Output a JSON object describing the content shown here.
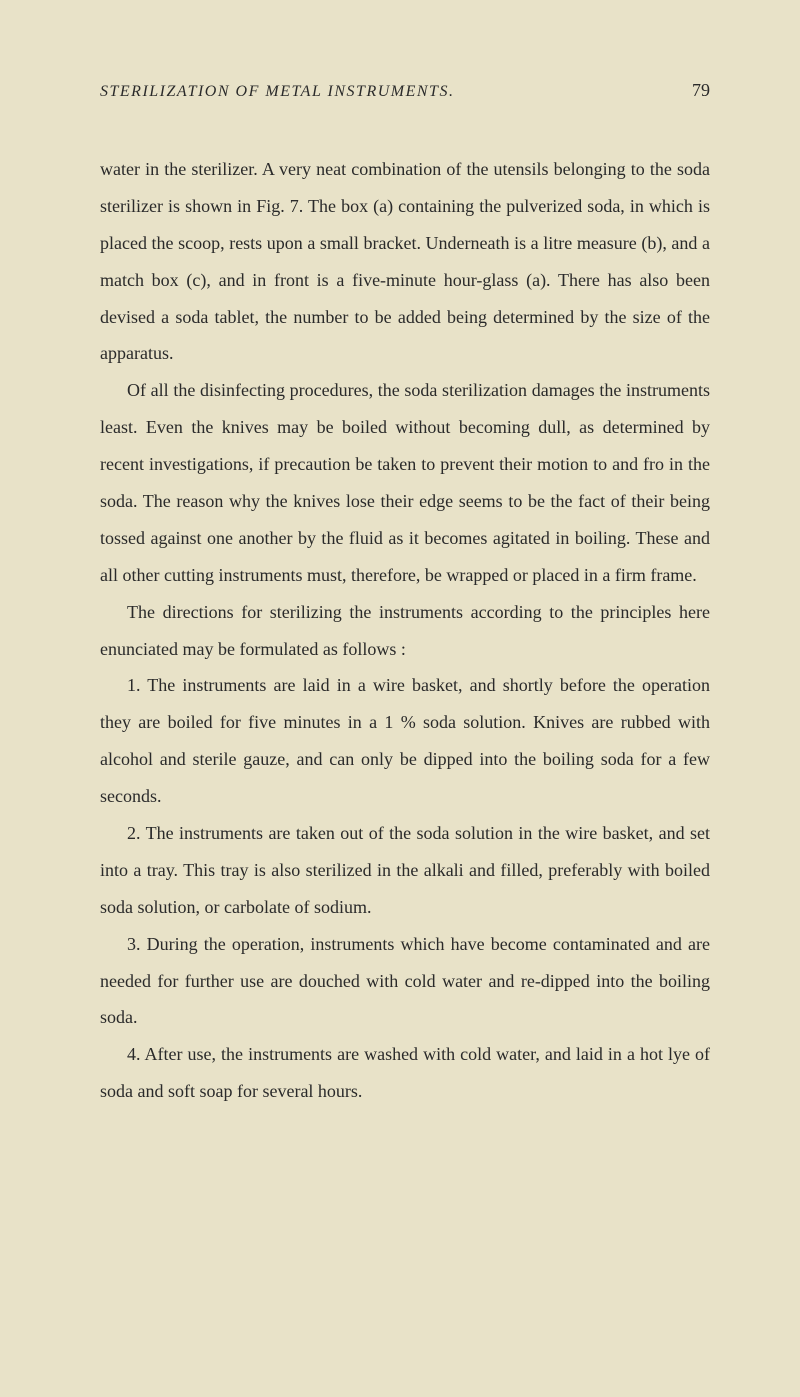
{
  "header": {
    "title": "STERILIZATION OF METAL INSTRUMENTS.",
    "pageNumber": "79"
  },
  "paragraphs": [
    "water in the sterilizer. A very neat combination of the utensils belonging to the soda sterilizer is shown in Fig. 7. The box (a) containing the pulverized soda, in which is placed the scoop, rests upon a small bracket. Underneath is a litre measure (b), and a match box (c), and in front is a five-minute hour-glass (a). There has also been devised a soda tablet, the number to be added being determined by the size of the apparatus.",
    "Of all the disinfecting procedures, the soda sterilization damages the instruments least. Even the knives may be boiled without becoming dull, as determined by recent investigations, if precaution be taken to prevent their motion to and fro in the soda. The reason why the knives lose their edge seems to be the fact of their being tossed against one another by the fluid as it becomes agitated in boiling. These and all other cutting instruments must, therefore, be wrapped or placed in a firm frame.",
    "The directions for sterilizing the instruments according to the principles here enunciated may be formulated as follows :",
    "1. The instruments are laid in a wire basket, and shortly before the operation they are boiled for five minutes in a 1 % soda solution. Knives are rubbed with alcohol and sterile gauze, and can only be dipped into the boiling soda for a few seconds.",
    "2. The instruments are taken out of the soda solution in the wire basket, and set into a tray. This tray is also sterilized in the alkali and filled, preferably with boiled soda solution, or carbolate of sodium.",
    "3. During the operation, instruments which have become contaminated and are needed for further use are douched with cold water and re-dipped into the boiling soda.",
    "4. After use, the instruments are washed with cold water, and laid in a hot lye of soda and soft soap for several hours."
  ],
  "colors": {
    "background": "#e8e2c8",
    "text": "#2a2a2a"
  },
  "typography": {
    "bodyFontSize": 18,
    "headerFontSize": 16,
    "lineHeight": 2.05,
    "fontFamily": "Georgia, serif"
  }
}
